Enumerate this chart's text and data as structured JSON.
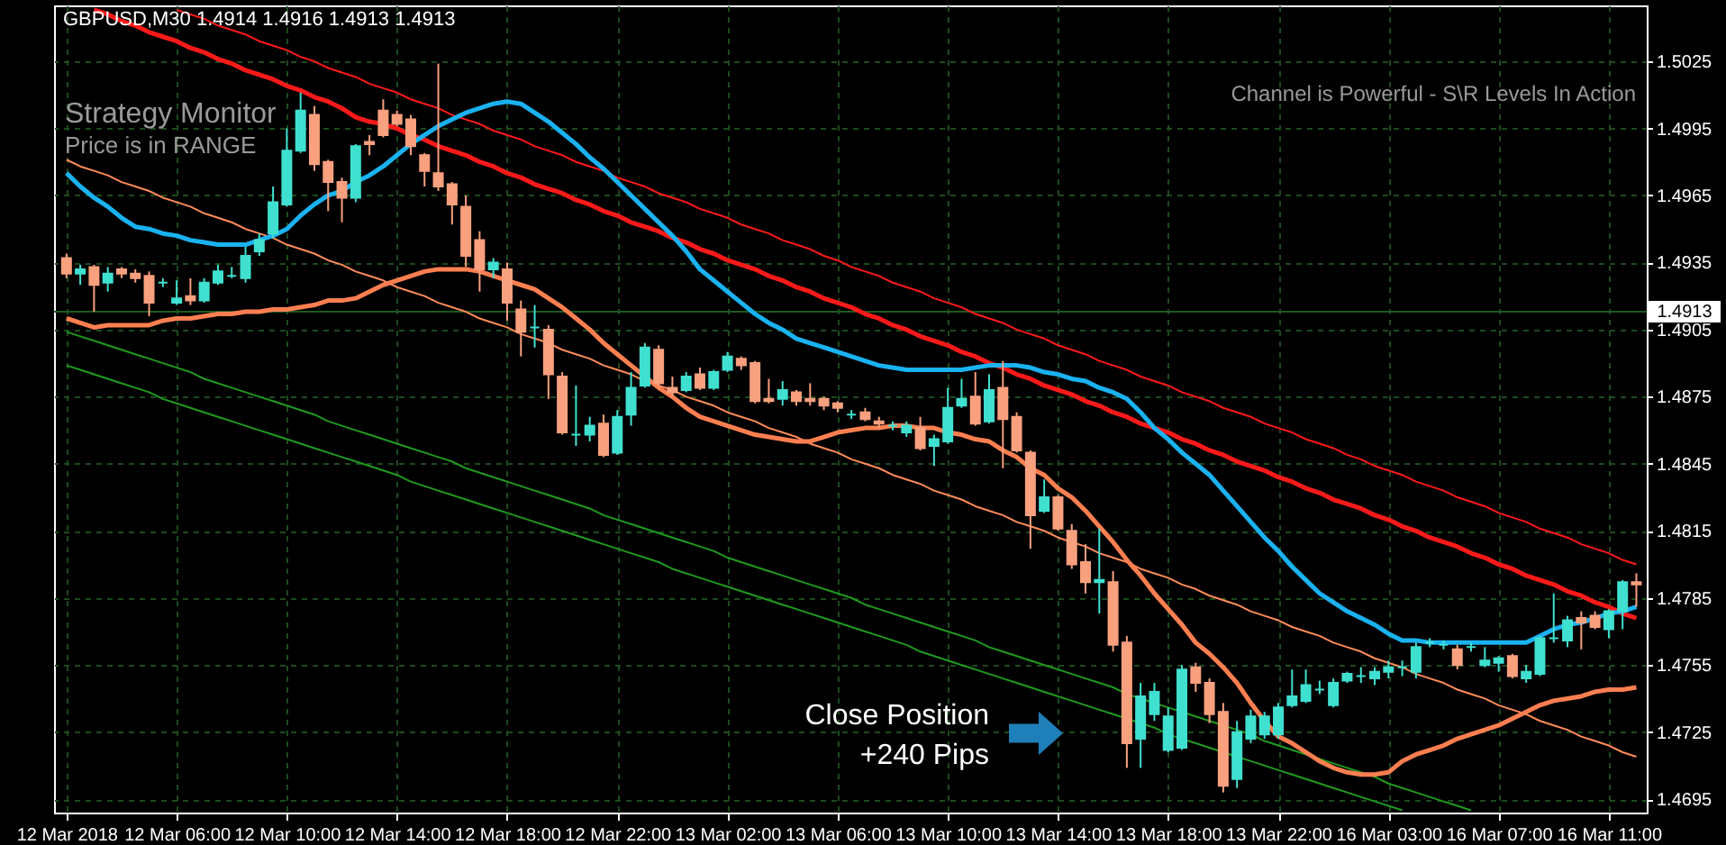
{
  "chart_data": {
    "type": "candlestick",
    "title": "GBPUSD,M30  1.4914 1.4916 1.4913 1.4913",
    "annotations": [
      "Strategy Monitor",
      "Price is in RANGE",
      "Channel is Powerful - S\\R Levels In Action",
      "Close Position\n+240 Pips"
    ],
    "categories": [
      "12 Mar 2018",
      null,
      null,
      null,
      null,
      null,
      null,
      null,
      "12 Mar 06:00",
      null,
      null,
      null,
      null,
      null,
      null,
      null,
      "12 Mar 10:00",
      null,
      null,
      null,
      null,
      null,
      null,
      null,
      "12 Mar 14:00",
      null,
      null,
      null,
      null,
      null,
      null,
      null,
      "12 Mar 18:00",
      null,
      null,
      null,
      null,
      null,
      null,
      null,
      "12 Mar 22:00",
      null,
      null,
      null,
      null,
      null,
      null,
      null,
      "13 Mar 02:00",
      null,
      null,
      null,
      null,
      null,
      null,
      null,
      "13 Mar 06:00",
      null,
      null,
      null,
      null,
      null,
      null,
      null,
      "13 Mar 10:00",
      null,
      null,
      null,
      null,
      null,
      null,
      null,
      "13 Mar 14:00",
      null,
      null,
      null,
      null,
      null,
      null,
      null,
      "13 Mar 18:00",
      null,
      null,
      null,
      null,
      null,
      null,
      null,
      "13 Mar 22:00",
      null,
      null,
      null,
      null,
      null,
      null,
      null,
      "16 Mar 03:00",
      null,
      null,
      null,
      null,
      null,
      null,
      null,
      "16 Mar 07:00",
      null,
      null,
      null,
      null,
      null,
      null,
      null,
      "16 Mar 11:00",
      null,
      null
    ],
    "ohlc": [
      [
        1.4937,
        1.4939,
        1.4928,
        1.493
      ],
      [
        1.493,
        1.4934,
        1.4925,
        1.4932
      ],
      [
        1.4933,
        1.4934,
        1.4913,
        1.4925
      ],
      [
        1.4926,
        1.4933,
        1.4922,
        1.493
      ],
      [
        1.4932,
        1.4933,
        1.4928,
        1.493
      ],
      [
        1.493,
        1.4932,
        1.4926,
        1.4928
      ],
      [
        1.4929,
        1.4931,
        1.4911,
        1.4917
      ],
      [
        1.4926,
        1.4928,
        1.4924,
        1.4926
      ],
      [
        1.4917,
        1.4927,
        1.4916,
        1.4919
      ],
      [
        1.492,
        1.4928,
        1.4916,
        1.4918
      ],
      [
        1.4918,
        1.4928,
        1.4917,
        1.4926
      ],
      [
        1.4926,
        1.4934,
        1.4925,
        1.4931
      ],
      [
        1.4929,
        1.4933,
        1.4928,
        1.4929
      ],
      [
        1.4928,
        1.4942,
        1.4926,
        1.4938
      ],
      [
        1.494,
        1.4948,
        1.4938,
        1.4945
      ],
      [
        1.4948,
        1.4969,
        1.4946,
        1.4962
      ],
      [
        1.4961,
        1.4995,
        1.496,
        1.4985
      ],
      [
        1.4985,
        1.5011,
        1.4984,
        1.5003
      ],
      [
        1.5001,
        1.5005,
        1.4976,
        1.4979
      ],
      [
        1.498,
        1.4981,
        1.4958,
        1.4971
      ],
      [
        1.4971,
        1.4973,
        1.4953,
        1.4964
      ],
      [
        1.4964,
        1.4988,
        1.4962,
        1.4987
      ],
      [
        1.4989,
        1.4992,
        1.4983,
        1.4988
      ],
      [
        1.5003,
        1.5008,
        1.4991,
        1.4992
      ],
      [
        1.5001,
        1.5003,
        1.4996,
        1.4997
      ],
      [
        1.4999,
        1.5001,
        1.4983,
        1.4987
      ],
      [
        1.4983,
        1.4984,
        1.4969,
        1.4976
      ],
      [
        1.4975,
        1.5024,
        1.4967,
        1.4969
      ],
      [
        1.497,
        1.4971,
        1.4952,
        1.4961
      ],
      [
        1.496,
        1.4965,
        1.4933,
        1.4938
      ],
      [
        1.4945,
        1.4949,
        1.4922,
        1.4932
      ],
      [
        1.4932,
        1.4937,
        1.4928,
        1.4935
      ],
      [
        1.4932,
        1.4935,
        1.4909,
        1.4917
      ],
      [
        1.4914,
        1.4918,
        1.4893,
        1.4904
      ],
      [
        1.4906,
        1.4916,
        1.4897,
        1.4906
      ],
      [
        1.4905,
        1.4907,
        1.4874,
        1.4885
      ],
      [
        1.4884,
        1.4886,
        1.4858,
        1.4859
      ],
      [
        1.4858,
        1.488,
        1.4853,
        1.4858
      ],
      [
        1.4858,
        1.4866,
        1.4855,
        1.4862
      ],
      [
        1.4863,
        1.4867,
        1.4848,
        1.4849
      ],
      [
        1.485,
        1.4869,
        1.4849,
        1.4866
      ],
      [
        1.4867,
        1.4886,
        1.4862,
        1.4879
      ],
      [
        1.488,
        1.4899,
        1.4879,
        1.4897
      ],
      [
        1.4896,
        1.4898,
        1.4879,
        1.4881
      ],
      [
        1.4879,
        1.4884,
        1.4875,
        1.4877
      ],
      [
        1.4878,
        1.4886,
        1.4877,
        1.4884
      ],
      [
        1.4885,
        1.4888,
        1.4878,
        1.4879
      ],
      [
        1.4879,
        1.4887,
        1.4878,
        1.4886
      ],
      [
        1.4887,
        1.4895,
        1.4886,
        1.4893
      ],
      [
        1.4892,
        1.4893,
        1.4887,
        1.4889
      ],
      [
        1.489,
        1.4891,
        1.4872,
        1.4873
      ],
      [
        1.4874,
        1.4883,
        1.4872,
        1.4873
      ],
      [
        1.4874,
        1.4882,
        1.4871,
        1.4878
      ],
      [
        1.4877,
        1.4878,
        1.4871,
        1.4873
      ],
      [
        1.4874,
        1.4881,
        1.4871,
        1.4873
      ],
      [
        1.4874,
        1.4875,
        1.4869,
        1.4871
      ],
      [
        1.4872,
        1.4873,
        1.4868,
        1.487
      ],
      [
        1.4867,
        1.4869,
        1.4865,
        1.4867
      ],
      [
        1.4868,
        1.487,
        1.4864,
        1.4865
      ],
      [
        1.4864,
        1.4866,
        1.4861,
        1.4863
      ],
      [
        1.4862,
        1.4864,
        1.486,
        1.4862
      ],
      [
        1.4859,
        1.4864,
        1.4857,
        1.4862
      ],
      [
        1.4861,
        1.4866,
        1.4851,
        1.4852
      ],
      [
        1.4853,
        1.4858,
        1.4844,
        1.4856
      ],
      [
        1.4855,
        1.4879,
        1.4854,
        1.487
      ],
      [
        1.4871,
        1.4883,
        1.487,
        1.4874
      ],
      [
        1.4875,
        1.4886,
        1.4862,
        1.4863
      ],
      [
        1.4864,
        1.4885,
        1.4863,
        1.4878
      ],
      [
        1.4879,
        1.4891,
        1.4843,
        1.4865
      ],
      [
        1.4866,
        1.4868,
        1.485,
        1.4851
      ],
      [
        1.485,
        1.4851,
        1.4807,
        1.4822
      ],
      [
        1.4824,
        1.4838,
        1.4823,
        1.483
      ],
      [
        1.483,
        1.4831,
        1.4815,
        1.4816
      ],
      [
        1.4815,
        1.4818,
        1.4798,
        1.48
      ],
      [
        1.4801,
        1.4809,
        1.4787,
        1.4792
      ],
      [
        1.4792,
        1.4816,
        1.4778,
        1.4793
      ],
      [
        1.4792,
        1.4797,
        1.4761,
        1.4764
      ],
      [
        1.4765,
        1.4768,
        1.4709,
        1.472
      ],
      [
        1.4722,
        1.4747,
        1.4709,
        1.4741
      ],
      [
        1.4733,
        1.4747,
        1.473,
        1.4743
      ],
      [
        1.4717,
        1.4736,
        1.4716,
        1.4732
      ],
      [
        1.4718,
        1.4755,
        1.4717,
        1.4753
      ],
      [
        1.4754,
        1.4756,
        1.4743,
        1.4747
      ],
      [
        1.4747,
        1.4749,
        1.4729,
        1.4733
      ],
      [
        1.4734,
        1.4738,
        1.4698,
        1.4701
      ],
      [
        1.4704,
        1.473,
        1.47,
        1.4725
      ],
      [
        1.4722,
        1.4735,
        1.472,
        1.4732
      ],
      [
        1.4724,
        1.4734,
        1.4722,
        1.4732
      ],
      [
        1.4724,
        1.4738,
        1.4722,
        1.4736
      ],
      [
        1.4737,
        1.4753,
        1.4736,
        1.4741
      ],
      [
        1.4739,
        1.4753,
        1.4738,
        1.4746
      ],
      [
        1.4744,
        1.4748,
        1.4742,
        1.4744
      ],
      [
        1.4737,
        1.4749,
        1.4736,
        1.4747
      ],
      [
        1.4748,
        1.4752,
        1.4747,
        1.4751
      ],
      [
        1.475,
        1.4754,
        1.4747,
        1.475
      ],
      [
        1.4749,
        1.4754,
        1.4746,
        1.4752
      ],
      [
        1.4752,
        1.4757,
        1.4749,
        1.4754
      ],
      [
        1.4754,
        1.4757,
        1.475,
        1.4754
      ],
      [
        1.4752,
        1.4765,
        1.4749,
        1.4763
      ],
      [
        1.4765,
        1.4767,
        1.4763,
        1.4765
      ],
      [
        1.4764,
        1.4766,
        1.4762,
        1.4764
      ],
      [
        1.4762,
        1.4764,
        1.4753,
        1.4755
      ],
      [
        1.4763,
        1.4765,
        1.4761,
        1.4763
      ],
      [
        1.4755,
        1.4763,
        1.4754,
        1.4757
      ],
      [
        1.4756,
        1.4759,
        1.4752,
        1.4758
      ],
      [
        1.4759,
        1.476,
        1.4749,
        1.475
      ],
      [
        1.4749,
        1.4755,
        1.4747,
        1.4752
      ],
      [
        1.4751,
        1.4768,
        1.475,
        1.4767
      ],
      [
        1.4767,
        1.4787,
        1.4765,
        1.4767
      ],
      [
        1.4766,
        1.4777,
        1.4763,
        1.4775
      ],
      [
        1.4776,
        1.4779,
        1.4762,
        1.4774
      ],
      [
        1.4777,
        1.4779,
        1.4771,
        1.4772
      ],
      [
        1.4771,
        1.478,
        1.4767,
        1.4779
      ],
      [
        1.4779,
        1.4793,
        1.4771,
        1.4792
      ],
      [
        1.4792,
        1.4796,
        1.4781,
        1.4791
      ]
    ],
    "colors": [
      "#f9a07e",
      "#40e0d0",
      "#f9a07e",
      "#40e0d0",
      "#f9a07e",
      "#f9a07e",
      "#f9a07e",
      "#40e0d0",
      "#40e0d0",
      "#f9a07e",
      "#40e0d0",
      "#40e0d0",
      "#40e0d0",
      "#40e0d0",
      "#40e0d0",
      "#40e0d0",
      "#40e0d0",
      "#40e0d0",
      "#f9a07e",
      "#f9a07e",
      "#f9a07e",
      "#40e0d0",
      "#f9a07e",
      "#f9a07e",
      "#f9a07e",
      "#f9a07e",
      "#f9a07e",
      "#f9a07e",
      "#f9a07e",
      "#f9a07e",
      "#f9a07e",
      "#40e0d0",
      "#f9a07e",
      "#f9a07e",
      "#40e0d0",
      "#f9a07e",
      "#f9a07e",
      "#40e0d0",
      "#40e0d0",
      "#f9a07e",
      "#40e0d0",
      "#40e0d0",
      "#40e0d0",
      "#f9a07e",
      "#f9a07e",
      "#40e0d0",
      "#f9a07e",
      "#40e0d0",
      "#40e0d0",
      "#f9a07e",
      "#f9a07e",
      "#f9a07e",
      "#40e0d0",
      "#f9a07e",
      "#f9a07e",
      "#f9a07e",
      "#f9a07e",
      "#40e0d0",
      "#f9a07e",
      "#f9a07e",
      "#40e0d0",
      "#40e0d0",
      "#f9a07e",
      "#40e0d0",
      "#40e0d0",
      "#40e0d0",
      "#f9a07e",
      "#40e0d0",
      "#f9a07e",
      "#f9a07e",
      "#f9a07e",
      "#40e0d0",
      "#f9a07e",
      "#f9a07e",
      "#f9a07e",
      "#40e0d0",
      "#f9a07e",
      "#f9a07e",
      "#40e0d0",
      "#40e0d0",
      "#40e0d0",
      "#40e0d0",
      "#f9a07e",
      "#f9a07e",
      "#f9a07e",
      "#40e0d0",
      "#40e0d0",
      "#40e0d0",
      "#40e0d0",
      "#40e0d0",
      "#40e0d0",
      "#40e0d0",
      "#40e0d0",
      "#40e0d0",
      "#40e0d0",
      "#40e0d0",
      "#40e0d0",
      "#40e0d0",
      "#40e0d0",
      "#40e0d0",
      "#40e0d0",
      "#f9a07e",
      "#40e0d0",
      "#40e0d0",
      "#40e0d0",
      "#f9a07e",
      "#40e0d0",
      "#40e0d0",
      "#40e0d0",
      "#40e0d0",
      "#f9a07e",
      "#f9a07e",
      "#40e0d0",
      "#40e0d0",
      "#f9a07e"
    ],
    "series": [
      {
        "type": "line",
        "color": "#ff1a1a",
        "values": [
          null,
          null,
          null,
          null,
          null,
          null,
          null,
          null,
          1.5048,
          1.5046,
          1.5044,
          1.5041,
          1.5039,
          1.5037,
          1.5034,
          1.5032,
          1.503,
          1.5027,
          1.5025,
          1.5022,
          1.502,
          1.5018,
          1.5015,
          1.5013,
          1.5011,
          1.5008,
          1.5006,
          1.5004,
          1.5001,
          1.4999,
          1.4997,
          1.4994,
          1.4992,
          1.499,
          1.4987,
          1.4985,
          1.4983,
          1.498,
          1.4978,
          1.4976,
          1.4973,
          1.4971,
          1.4969,
          1.4966,
          1.4964,
          1.4962,
          1.4959,
          1.4957,
          1.4955,
          1.4952,
          1.495,
          1.4948,
          1.4945,
          1.4943,
          1.4941,
          1.4938,
          1.4936,
          1.4933,
          1.4931,
          1.4929,
          1.4926,
          1.4924,
          1.4922,
          1.4919,
          1.4917,
          1.4915,
          1.4912,
          1.491,
          1.4908,
          1.4905,
          1.4903,
          1.4901,
          1.4898,
          1.4896,
          1.4894,
          1.4891,
          1.4889,
          1.4887,
          1.4884,
          1.4882,
          1.488,
          1.4877,
          1.4875,
          1.4873,
          1.487,
          1.4868,
          1.4866,
          1.4863,
          1.4861,
          1.4859,
          1.4856,
          1.4854,
          1.4852,
          1.4849,
          1.4847,
          1.4844,
          1.4842,
          1.484,
          1.4837,
          1.4835,
          1.4833,
          1.483,
          1.4828,
          1.4826,
          1.4823,
          1.4821,
          1.4819,
          1.4816,
          1.4814,
          1.4812,
          1.4809,
          1.4807,
          1.4805,
          1.4802,
          1.48
        ]
      },
      {
        "type": "line",
        "color": "#ff1a1a",
        "values": [
          null,
          null,
          1.5048,
          1.5046,
          1.5043,
          1.5041,
          1.5038,
          1.5036,
          1.5034,
          1.5031,
          1.5029,
          1.5026,
          1.5024,
          1.5021,
          1.5019,
          1.5017,
          1.5014,
          1.5012,
          1.5009,
          1.5007,
          1.5004,
          1.5,
          1.4998,
          1.4997,
          1.4995,
          1.4992,
          1.499,
          1.4987,
          1.4985,
          1.4983,
          1.498,
          1.4978,
          1.4975,
          1.4973,
          1.497,
          1.4968,
          1.4966,
          1.4963,
          1.4961,
          1.4958,
          1.4956,
          1.4953,
          1.4951,
          1.4949,
          1.4946,
          1.4944,
          1.4941,
          1.4939,
          1.4936,
          1.4934,
          1.4932,
          1.4929,
          1.4927,
          1.4924,
          1.4922,
          1.4919,
          1.4917,
          1.4915,
          1.4912,
          1.491,
          1.4907,
          1.4905,
          1.4902,
          1.49,
          1.4898,
          1.4895,
          1.4893,
          1.489,
          1.4888,
          1.4885,
          1.4883,
          1.488,
          1.4878,
          1.4876,
          1.4873,
          1.4871,
          1.4868,
          1.4866,
          1.4863,
          1.4861,
          1.4859,
          1.4856,
          1.4854,
          1.4851,
          1.4849,
          1.4846,
          1.4844,
          1.4842,
          1.4839,
          1.4837,
          1.4834,
          1.4832,
          1.4829,
          1.4827,
          1.4825,
          1.4822,
          1.482,
          1.4817,
          1.4815,
          1.4812,
          1.481,
          1.4808,
          1.4805,
          1.4803,
          1.48,
          1.4798,
          1.4795,
          1.4793,
          1.4791,
          1.4788,
          1.4786,
          1.4783,
          1.4781,
          1.4778,
          1.4776
        ]
      },
      {
        "type": "line",
        "color": "#ff8c5a",
        "values": [
          1.4981,
          1.4978,
          1.4976,
          1.4974,
          1.4971,
          1.4969,
          1.4967,
          1.4964,
          1.4962,
          1.496,
          1.4957,
          1.4955,
          1.4953,
          1.495,
          1.4948,
          1.4946,
          1.4943,
          1.4941,
          1.4939,
          1.4936,
          1.4934,
          1.4931,
          1.4929,
          1.4927,
          1.4924,
          1.4922,
          1.492,
          1.4917,
          1.4915,
          1.4913,
          1.491,
          1.4908,
          1.4906,
          1.4903,
          1.4901,
          1.4899,
          1.4896,
          1.4894,
          1.4892,
          1.4889,
          1.4887,
          1.4885,
          1.4882,
          1.488,
          1.4878,
          1.4875,
          1.4873,
          1.4871,
          1.4868,
          1.4866,
          1.4864,
          1.4861,
          1.4859,
          1.4857,
          1.4854,
          1.4852,
          1.485,
          1.4847,
          1.4845,
          1.4843,
          1.484,
          1.4838,
          1.4836,
          1.4833,
          1.4831,
          1.4829,
          1.4826,
          1.4824,
          1.4822,
          1.4819,
          1.4817,
          1.4815,
          1.4812,
          1.481,
          1.4808,
          1.4805,
          1.4803,
          1.4801,
          1.4798,
          1.4796,
          1.4794,
          1.4791,
          1.4789,
          1.4786,
          1.4784,
          1.4782,
          1.4779,
          1.4777,
          1.4775,
          1.4772,
          1.477,
          1.4768,
          1.4765,
          1.4763,
          1.4761,
          1.4758,
          1.4756,
          1.4754,
          1.4751,
          1.4749,
          1.4747,
          1.4744,
          1.4742,
          1.474,
          1.4737,
          1.4735,
          1.4733,
          1.473,
          1.4728,
          1.4726,
          1.4723,
          1.4721,
          1.4719,
          1.4716,
          1.4714
        ]
      },
      {
        "type": "line",
        "color": "#1f9a1f",
        "values": [
          1.4904,
          1.4902,
          1.49,
          1.4898,
          1.4896,
          1.4894,
          1.4892,
          1.489,
          1.4888,
          1.4886,
          1.4883,
          1.4881,
          1.4879,
          1.4877,
          1.4875,
          1.4873,
          1.4871,
          1.4869,
          1.4867,
          1.4864,
          1.4862,
          1.486,
          1.4858,
          1.4856,
          1.4854,
          1.4852,
          1.485,
          1.4848,
          1.4846,
          1.4843,
          1.4841,
          1.4839,
          1.4837,
          1.4835,
          1.4833,
          1.4831,
          1.4829,
          1.4827,
          1.4825,
          1.4822,
          1.482,
          1.4818,
          1.4816,
          1.4814,
          1.4812,
          1.481,
          1.4808,
          1.4806,
          1.4803,
          1.4801,
          1.4799,
          1.4797,
          1.4795,
          1.4793,
          1.4791,
          1.4789,
          1.4787,
          1.4785,
          1.4782,
          1.478,
          1.4778,
          1.4776,
          1.4774,
          1.4772,
          1.477,
          1.4768,
          1.4766,
          1.4763,
          1.4761,
          1.4759,
          1.4757,
          1.4755,
          1.4753,
          1.4751,
          1.4749,
          1.4747,
          1.4745,
          1.4742,
          1.474,
          1.4738,
          1.4736,
          1.4734,
          1.4732,
          1.473,
          1.4728,
          1.4726,
          1.4724,
          1.4721,
          1.4719,
          1.4717,
          1.4715,
          1.4713,
          1.4711,
          1.4709,
          1.4707,
          1.4705,
          1.4702,
          1.47,
          1.4698,
          1.4696,
          1.4694,
          1.4692,
          1.469,
          null,
          null,
          null,
          null,
          null,
          null,
          null,
          null,
          null,
          null,
          null,
          null
        ]
      },
      {
        "type": "line",
        "color": "#1f9a1f",
        "values": [
          1.4889,
          1.4887,
          1.4885,
          1.4883,
          1.4881,
          1.4879,
          1.4877,
          1.4874,
          1.4872,
          1.487,
          1.4868,
          1.4866,
          1.4864,
          1.4862,
          1.486,
          1.4858,
          1.4856,
          1.4854,
          1.4852,
          1.485,
          1.4848,
          1.4846,
          1.4844,
          1.4842,
          1.484,
          1.4837,
          1.4835,
          1.4833,
          1.4831,
          1.4829,
          1.4827,
          1.4825,
          1.4823,
          1.4821,
          1.4819,
          1.4817,
          1.4815,
          1.4813,
          1.4811,
          1.4809,
          1.4807,
          1.4805,
          1.4803,
          1.4801,
          1.4798,
          1.4796,
          1.4794,
          1.4792,
          1.479,
          1.4788,
          1.4786,
          1.4784,
          1.4782,
          1.478,
          1.4778,
          1.4776,
          1.4774,
          1.4772,
          1.477,
          1.4768,
          1.4766,
          1.4764,
          1.4761,
          1.4759,
          1.4757,
          1.4755,
          1.4753,
          1.4751,
          1.4749,
          1.4747,
          1.4745,
          1.4743,
          1.4741,
          1.4739,
          1.4737,
          1.4735,
          1.4733,
          1.4731,
          1.4729,
          1.4727,
          1.4724,
          1.4722,
          1.472,
          1.4718,
          1.4716,
          1.4714,
          1.4712,
          1.471,
          1.4708,
          1.4706,
          1.4704,
          1.4702,
          1.47,
          1.4698,
          1.4696,
          1.4694,
          1.4692,
          1.469,
          null,
          null,
          null,
          null,
          null,
          null,
          null,
          null,
          null,
          null,
          null,
          null,
          null,
          null,
          null,
          null,
          null
        ]
      },
      {
        "type": "line",
        "color": "#1ab2f0",
        "values": [
          1.4975,
          1.4969,
          1.4964,
          1.496,
          1.4955,
          1.4951,
          1.495,
          1.4948,
          1.4947,
          1.4945,
          1.4944,
          1.4943,
          1.4943,
          1.4943,
          1.4945,
          1.4947,
          1.495,
          1.4956,
          1.4961,
          1.4965,
          1.4967,
          1.4971,
          1.4974,
          1.4978,
          1.4983,
          1.4988,
          1.4992,
          1.4996,
          1.4999,
          1.5002,
          1.5004,
          1.5006,
          1.5007,
          1.5006,
          1.5002,
          1.4998,
          1.4993,
          1.4988,
          1.4982,
          1.4977,
          1.4971,
          1.4965,
          1.4959,
          1.4953,
          1.4947,
          1.494,
          1.4932,
          1.4927,
          1.4922,
          1.4917,
          1.4912,
          1.4908,
          1.4905,
          1.4901,
          1.4899,
          1.4897,
          1.4895,
          1.4893,
          1.4891,
          1.4889,
          1.4888,
          1.4887,
          1.4887,
          1.4887,
          1.4887,
          1.4887,
          1.4888,
          1.4889,
          1.4889,
          1.4889,
          1.4888,
          1.4886,
          1.4885,
          1.4883,
          1.4882,
          1.4879,
          1.4877,
          1.4874,
          1.4868,
          1.4861,
          1.4856,
          1.485,
          1.4845,
          1.484,
          1.4833,
          1.4826,
          1.4819,
          1.4812,
          1.4806,
          1.4799,
          1.4793,
          1.4787,
          1.4783,
          1.4779,
          1.4776,
          1.4773,
          1.4769,
          1.4766,
          1.4766,
          1.4765,
          1.4765,
          1.4765,
          1.4765,
          1.4765,
          1.4765,
          1.4765,
          1.4765,
          1.4768,
          1.4771,
          1.4773,
          1.4774,
          1.4776,
          1.4778,
          1.4779,
          1.4781
        ]
      },
      {
        "type": "line",
        "color": "#ff7f50",
        "values": [
          1.491,
          1.4908,
          1.4906,
          1.4907,
          1.4907,
          1.4907,
          1.4907,
          1.4909,
          1.491,
          1.491,
          1.4911,
          1.4912,
          1.4912,
          1.4913,
          1.4913,
          1.4914,
          1.4914,
          1.4915,
          1.4916,
          1.4918,
          1.4918,
          1.4919,
          1.4922,
          1.4925,
          1.4927,
          1.4929,
          1.4931,
          1.4932,
          1.4932,
          1.4932,
          1.4931,
          1.4929,
          1.4927,
          1.4925,
          1.4923,
          1.4919,
          1.4915,
          1.491,
          1.4905,
          1.4899,
          1.4894,
          1.4889,
          1.4884,
          1.4879,
          1.4875,
          1.487,
          1.4866,
          1.4864,
          1.4862,
          1.486,
          1.4858,
          1.4857,
          1.4856,
          1.4855,
          1.4855,
          1.4857,
          1.4859,
          1.486,
          1.4861,
          1.4861,
          1.4862,
          1.4862,
          1.4861,
          1.4861,
          1.4859,
          1.4858,
          1.4856,
          1.4855,
          1.4851,
          1.4848,
          1.4843,
          1.484,
          1.4834,
          1.483,
          1.4824,
          1.4817,
          1.481,
          1.4802,
          1.4795,
          1.4787,
          1.478,
          1.4773,
          1.4765,
          1.476,
          1.4754,
          1.4747,
          1.4738,
          1.473,
          1.4723,
          1.472,
          1.4716,
          1.4712,
          1.4709,
          1.4707,
          1.4706,
          1.4706,
          1.4707,
          1.4712,
          1.4715,
          1.4717,
          1.4719,
          1.4722,
          1.4724,
          1.4726,
          1.4728,
          1.4731,
          1.4734,
          1.4737,
          1.4739,
          1.474,
          1.4741,
          1.4743,
          1.4744,
          1.4744,
          1.4745
        ]
      }
    ],
    "ref_lines": [
      {
        "axis": "y",
        "value": 1.4913,
        "label": "1.4913",
        "color": "#1e5a1e"
      }
    ],
    "ylim": [
      1.4689,
      1.505
    ],
    "yticks": [
      1.4695,
      1.4725,
      1.4755,
      1.4785,
      1.4815,
      1.4845,
      1.4875,
      1.4905,
      1.4935,
      1.4965,
      1.4995,
      1.5025
    ],
    "grid": true
  }
}
